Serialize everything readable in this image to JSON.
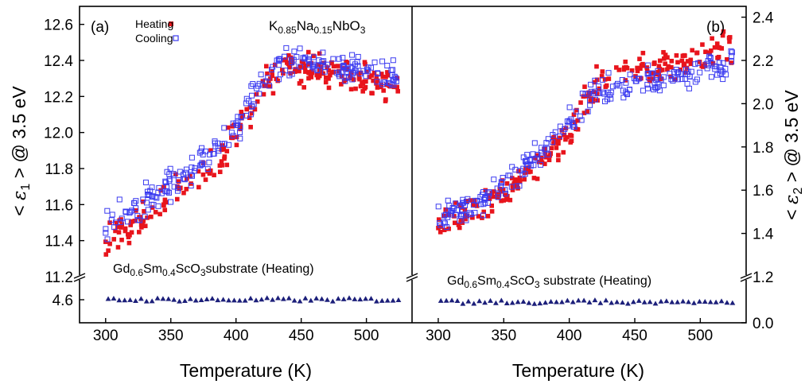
{
  "chart_data": [
    {
      "type": "scatter",
      "panel_label": "(a)",
      "compound": {
        "base": "K",
        "sub1": "0.85",
        "mid": "Na",
        "sub2": "0.15",
        "end": "NbO",
        "sub3": "3"
      },
      "substrate_label": {
        "a": "Gd",
        "sa": "0.6",
        "b": "Sm",
        "sb": "0.4",
        "c": "ScO",
        "sc": "3",
        "rest": "substrate (Heating)"
      },
      "xlabel": "Temperature (K)",
      "ylabel": {
        "pre": "< ",
        "sym": "ε",
        "sub": "1",
        "post": " > @ 3.5 eV"
      },
      "xlim": [
        280,
        535
      ],
      "xticks": [
        "300",
        "350",
        "400",
        "450",
        "500"
      ],
      "xtick_values": [
        300,
        350,
        400,
        450,
        500
      ],
      "ylim_upper": [
        11.2,
        12.7
      ],
      "yticks_upper": [
        "11.2",
        "11.4",
        "11.6",
        "11.8",
        "12.0",
        "12.2",
        "12.4",
        "12.6"
      ],
      "ytick_values_upper": [
        11.2,
        11.4,
        11.6,
        11.8,
        12.0,
        12.2,
        12.4,
        12.6
      ],
      "ylim_lower": [
        4.45,
        4.75
      ],
      "yticks_lower": [
        "4.6"
      ],
      "ytick_values_lower": [
        4.6
      ],
      "axis_break": true,
      "legend_position": "top-left",
      "series": [
        {
          "name": "Heating",
          "marker": "filled-square",
          "color": "#e8141c",
          "curve": [
            [
              300,
              11.4
            ],
            [
              350,
              11.66
            ],
            [
              380,
              11.8
            ],
            [
              400,
              11.98
            ],
            [
              420,
              12.25
            ],
            [
              440,
              12.37
            ],
            [
              470,
              12.33
            ],
            [
              500,
              12.28
            ],
            [
              525,
              12.27
            ]
          ]
        },
        {
          "name": "Cooling",
          "marker": "open-square",
          "color": "#3b3bf0",
          "curve": [
            [
              300,
              11.48
            ],
            [
              350,
              11.7
            ],
            [
              380,
              11.86
            ],
            [
              400,
              12.02
            ],
            [
              420,
              12.3
            ],
            [
              440,
              12.38
            ],
            [
              470,
              12.37
            ],
            [
              500,
              12.34
            ],
            [
              525,
              12.3
            ]
          ]
        },
        {
          "name": "",
          "marker": "filled-triangle",
          "color": "#1c1f7a",
          "curve": [
            [
              300,
              4.6
            ],
            [
              525,
              4.6
            ]
          ]
        }
      ]
    },
    {
      "type": "scatter",
      "panel_label": "(b)",
      "substrate_label": {
        "a": "Gd",
        "sa": "0.6",
        "b": "Sm",
        "sb": "0.4",
        "c": "ScO",
        "sc": "3",
        "rest": " substrate (Heating)"
      },
      "xlabel": "Temperature (K)",
      "ylabel": {
        "pre": "< ",
        "sym": "ε",
        "sub": "2",
        "post": " > @ 3.5 eV"
      },
      "xlim": [
        280,
        535
      ],
      "xticks": [
        "300",
        "350",
        "400",
        "450",
        "500"
      ],
      "xtick_values": [
        300,
        350,
        400,
        450,
        500
      ],
      "ylim_upper": [
        1.2,
        2.45
      ],
      "yticks_upper": [
        "1.2",
        "1.4",
        "1.6",
        "1.8",
        "2.0",
        "2.2",
        "2.4"
      ],
      "ytick_values_upper": [
        1.2,
        1.4,
        1.6,
        1.8,
        2.0,
        2.2,
        2.4
      ],
      "ylim_lower": [
        0.0,
        0.2
      ],
      "yticks_lower": [
        "0.0"
      ],
      "ytick_values_lower": [
        0.0
      ],
      "axis_break": true,
      "series": [
        {
          "name": "Heating",
          "marker": "filled-square",
          "color": "#e8141c",
          "curve": [
            [
              300,
              1.42
            ],
            [
              350,
              1.6
            ],
            [
              380,
              1.75
            ],
            [
              400,
              1.87
            ],
            [
              420,
              2.08
            ],
            [
              440,
              2.15
            ],
            [
              470,
              2.17
            ],
            [
              500,
              2.2
            ],
            [
              525,
              2.27
            ]
          ]
        },
        {
          "name": "Cooling",
          "marker": "open-square",
          "color": "#3b3bf0",
          "curve": [
            [
              300,
              1.46
            ],
            [
              350,
              1.62
            ],
            [
              380,
              1.78
            ],
            [
              400,
              1.91
            ],
            [
              420,
              2.05
            ],
            [
              440,
              2.08
            ],
            [
              470,
              2.1
            ],
            [
              500,
              2.15
            ],
            [
              525,
              2.2
            ]
          ]
        },
        {
          "name": "",
          "marker": "filled-triangle",
          "color": "#1c1f7a",
          "curve": [
            [
              300,
              0.09
            ],
            [
              525,
              0.09
            ]
          ]
        }
      ]
    }
  ]
}
